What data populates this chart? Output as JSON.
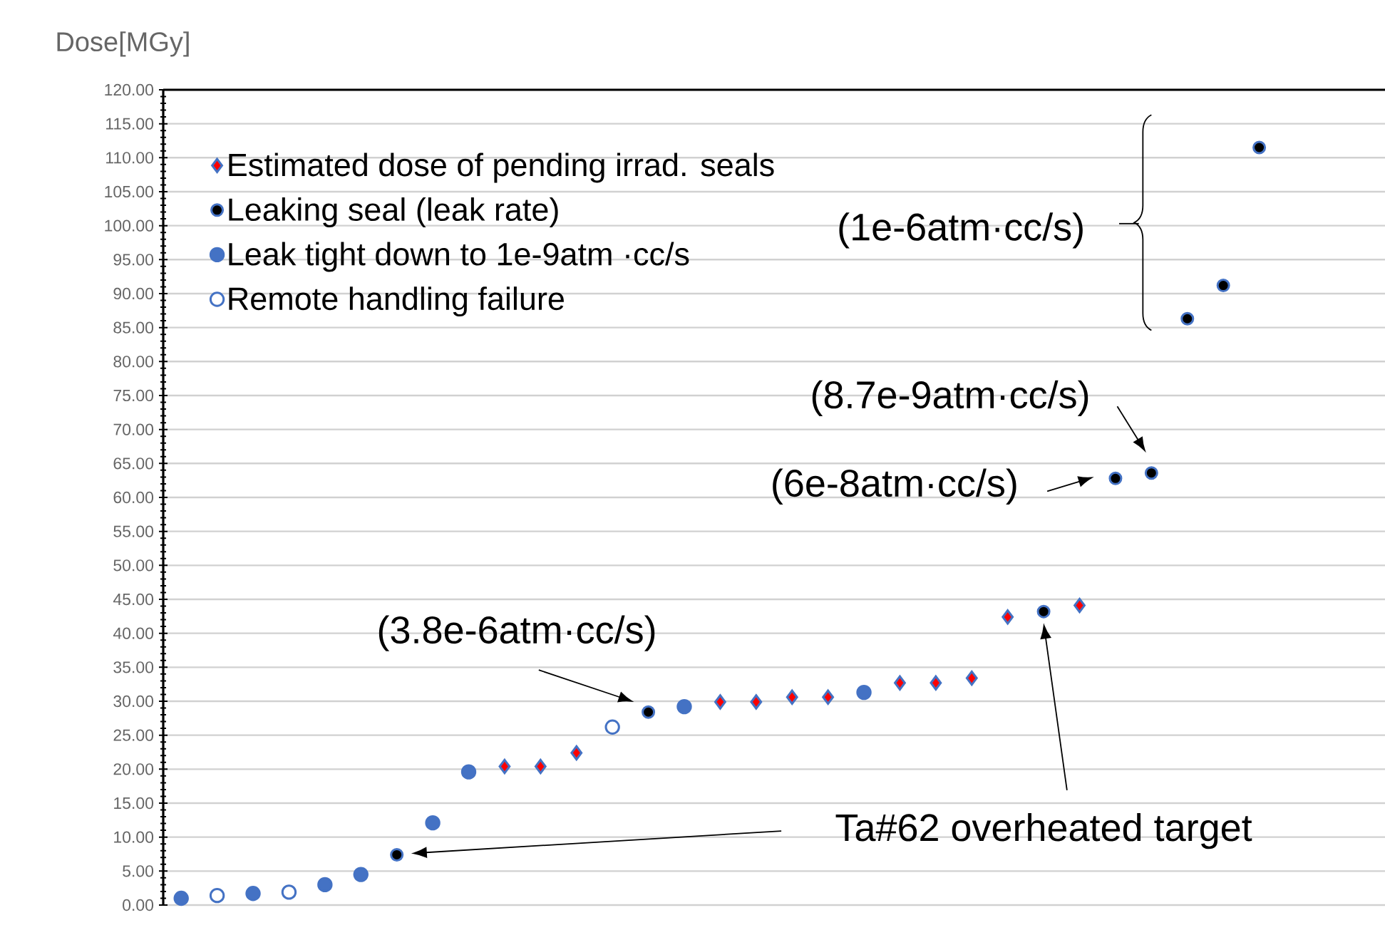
{
  "chart_data": {
    "type": "scatter",
    "ylabel": "Dose[MGy]",
    "categories": [
      null,
      null,
      null,
      null,
      null,
      null,
      null,
      null,
      null,
      null,
      null,
      null,
      null,
      null,
      null,
      null,
      null,
      null,
      null,
      null,
      null,
      null,
      null,
      null,
      null,
      null,
      null,
      null,
      null,
      null,
      null,
      null,
      null,
      null
    ],
    "series": [
      {
        "name": "Estimated dose of pending irrad. seals",
        "color": "#ff0000",
        "marker": "diamond",
        "values": [
          null,
          null,
          null,
          null,
          null,
          null,
          null,
          null,
          null,
          20.4,
          20.4,
          22.4,
          null,
          null,
          null,
          29.9,
          29.9,
          30.6,
          30.6,
          null,
          32.7,
          32.7,
          33.4,
          42.4,
          null,
          44.1,
          null,
          null,
          null,
          null,
          null,
          null,
          null,
          null
        ]
      },
      {
        "name": "Leaking seal (leak rate)",
        "color": "#000000",
        "marker": "circle",
        "values": [
          null,
          null,
          null,
          null,
          null,
          null,
          7.4,
          null,
          null,
          null,
          null,
          null,
          null,
          28.4,
          null,
          null,
          null,
          null,
          null,
          null,
          null,
          null,
          null,
          null,
          43.2,
          null,
          62.8,
          63.6,
          86.3,
          91.2,
          111.5,
          null,
          null,
          null
        ]
      },
      {
        "name": "Leak tight down to 1e-9atm ·cc/s",
        "color": "#4472c4",
        "marker": "circle",
        "values": [
          1.0,
          null,
          1.7,
          null,
          3.0,
          4.5,
          null,
          12.1,
          19.6,
          null,
          null,
          null,
          null,
          null,
          29.2,
          null,
          null,
          null,
          null,
          31.3,
          null,
          null,
          null,
          null,
          null,
          null,
          null,
          null,
          null,
          null,
          null,
          null,
          null,
          null
        ]
      },
      {
        "name": "Remote handling failure",
        "color": "#ffffff",
        "marker": "circle",
        "values": [
          null,
          1.4,
          null,
          1.9,
          null,
          null,
          null,
          null,
          null,
          null,
          null,
          null,
          26.2,
          null,
          null,
          null,
          null,
          null,
          null,
          null,
          null,
          null,
          null,
          null,
          null,
          null,
          null,
          null,
          null,
          null,
          null,
          null,
          null,
          null
        ]
      }
    ],
    "ylim": [
      0,
      120
    ],
    "yticks": [
      {
        "value": 0,
        "label": "0.00"
      },
      {
        "value": 5,
        "label": "5.00"
      },
      {
        "value": 10,
        "label": "10.00"
      },
      {
        "value": 15,
        "label": "15.00"
      },
      {
        "value": 20,
        "label": "20.00"
      },
      {
        "value": 25,
        "label": "25.00"
      },
      {
        "value": 30,
        "label": "30.00"
      },
      {
        "value": 35,
        "label": "35.00"
      },
      {
        "value": 40,
        "label": "40.00"
      },
      {
        "value": 45,
        "label": "45.00"
      },
      {
        "value": 50,
        "label": "50.00"
      },
      {
        "value": 55,
        "label": "55.00"
      },
      {
        "value": 60,
        "label": "60.00"
      },
      {
        "value": 65,
        "label": "65.00"
      },
      {
        "value": 70,
        "label": "70.00"
      },
      {
        "value": 75,
        "label": "75.00"
      },
      {
        "value": 80,
        "label": "80.00"
      },
      {
        "value": 85,
        "label": "85.00"
      },
      {
        "value": 90,
        "label": "90.00"
      },
      {
        "value": 95,
        "label": "95.00"
      },
      {
        "value": 100,
        "label": "100.00"
      },
      {
        "value": 105,
        "label": "105.00"
      },
      {
        "value": 110,
        "label": "110.00"
      },
      {
        "value": 115,
        "label": "115.00"
      },
      {
        "value": 120,
        "label": "120.00"
      }
    ],
    "grid": "y",
    "legend": "top left",
    "tick_labels": "y",
    "annotations": [
      "(1e-6atm·cc/s)",
      "(8.7e-9atm·cc/s)",
      "(6e-8atm·cc/s)",
      "(3.8e-6atm·cc/s)",
      "Ta#62 overheated target"
    ]
  }
}
